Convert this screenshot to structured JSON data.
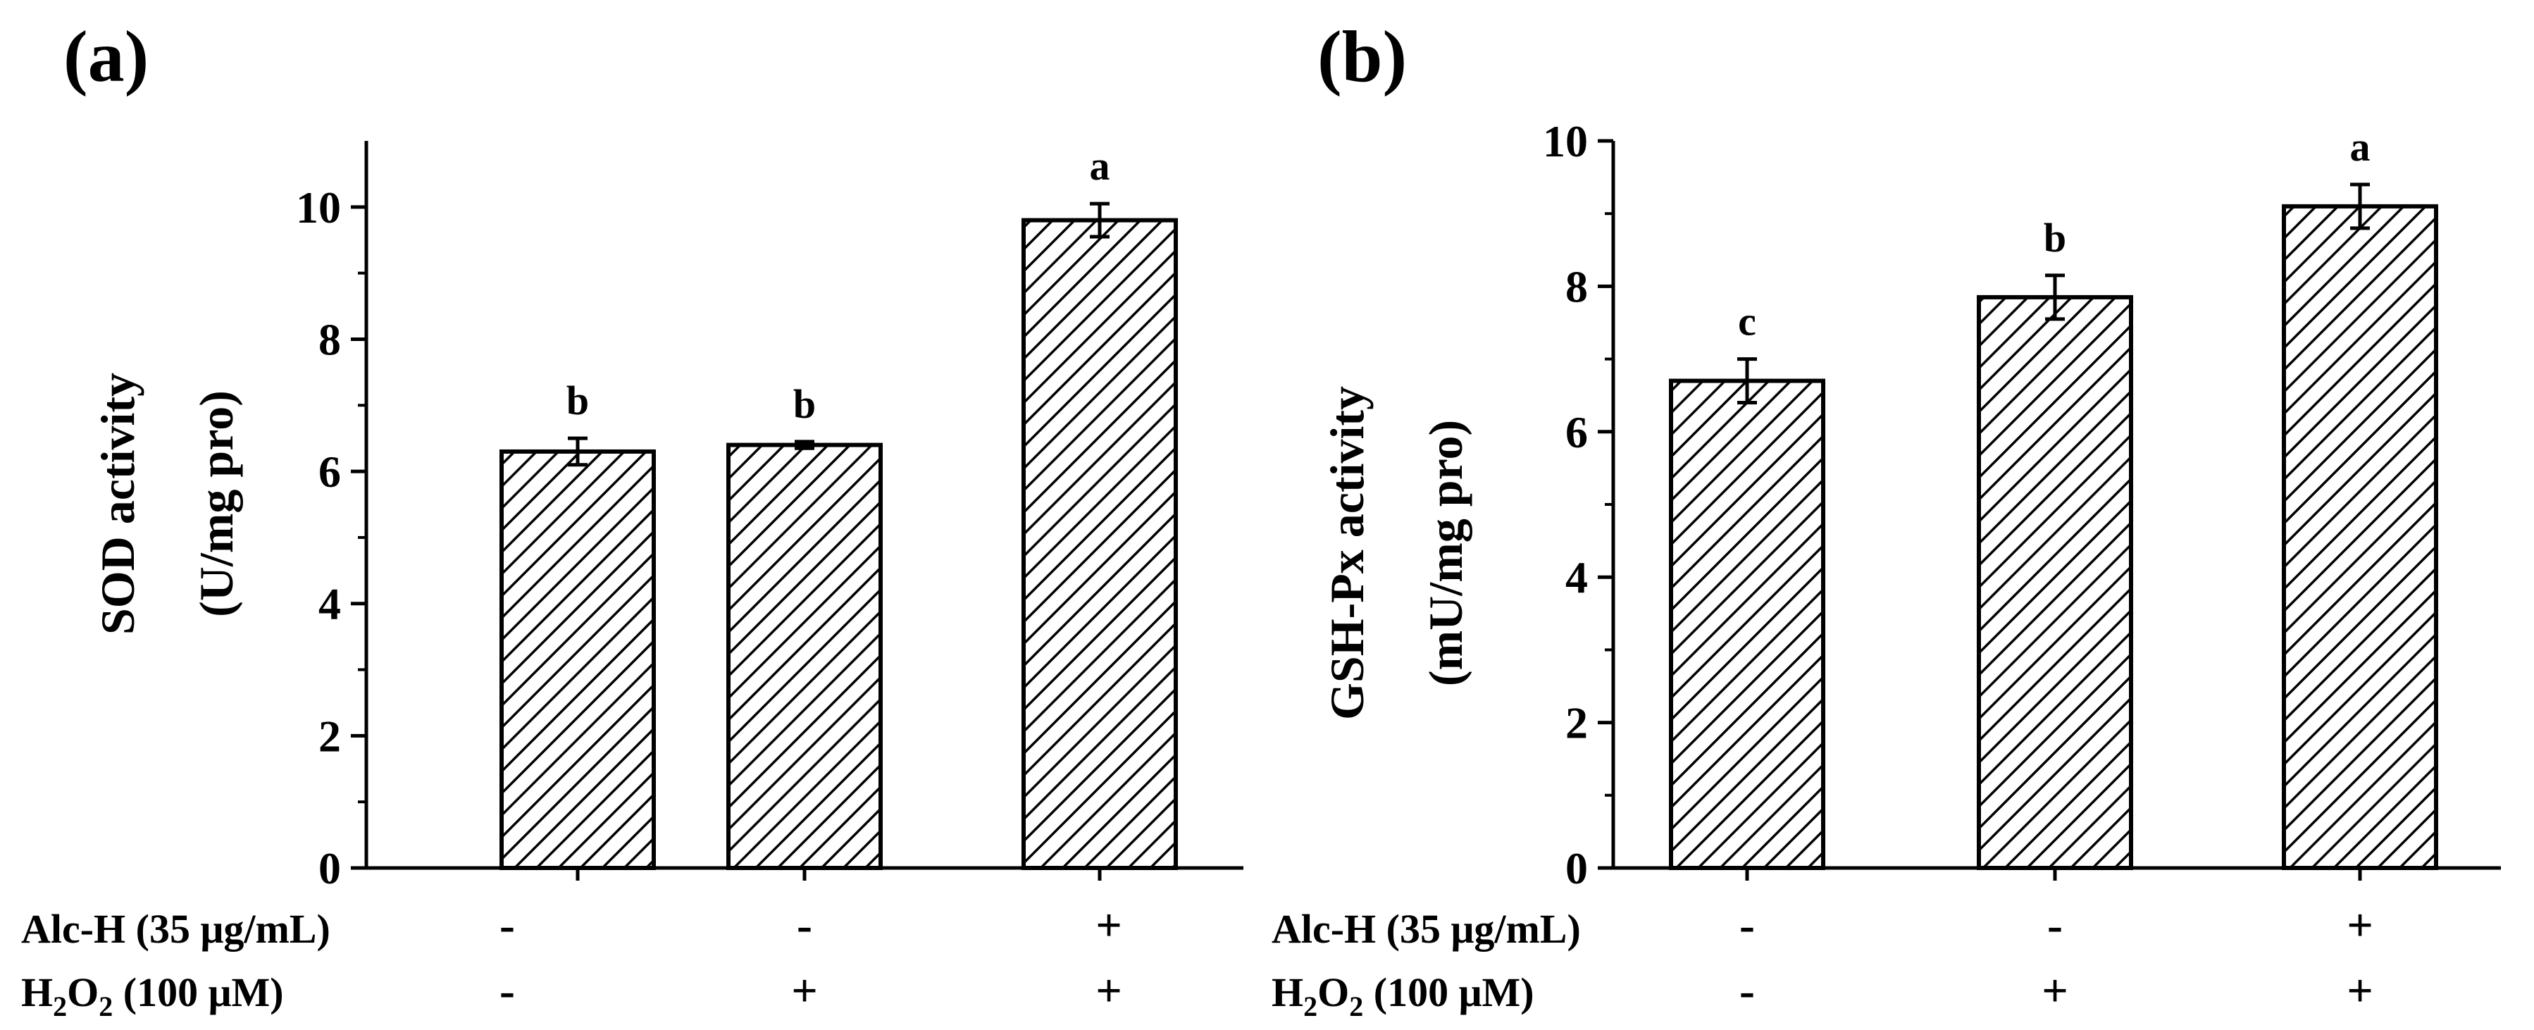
{
  "chart_data": [
    {
      "type": "bar",
      "panel_label": "(a)",
      "ylabel_line1": "SOD activity",
      "ylabel_line2": "(U/mg pro)",
      "ylim": [
        0,
        11
      ],
      "yticks": [
        0,
        2,
        4,
        6,
        8,
        10
      ],
      "categories": [
        "Alc-H -, H2O2 -",
        "Alc-H -, H2O2 +",
        "Alc-H +, H2O2 +"
      ],
      "values": [
        6.3,
        6.4,
        9.8
      ],
      "errors": [
        0.2,
        0.05,
        0.25
      ],
      "significance": [
        "b",
        "b",
        "a"
      ],
      "pattern": "diagonal-hatch"
    },
    {
      "type": "bar",
      "panel_label": "(b)",
      "ylabel_line1": "GSH-Px activity",
      "ylabel_line2": "(mU/mg pro)",
      "ylim": [
        0,
        10
      ],
      "yticks": [
        0,
        2,
        4,
        6,
        8,
        10
      ],
      "categories": [
        "Alc-H -, H2O2 -",
        "Alc-H -, H2O2 +",
        "Alc-H +, H2O2 +"
      ],
      "values": [
        6.7,
        7.85,
        9.1
      ],
      "errors": [
        0.3,
        0.3,
        0.3
      ],
      "significance": [
        "c",
        "b",
        "a"
      ],
      "pattern": "diagonal-hatch"
    }
  ],
  "treatment_rows": {
    "alc_label": "Alc-H (35 μg/mL)",
    "h2o2_prefix": "H",
    "h2o2_sub1": "2",
    "h2o2_mid": "O",
    "h2o2_sub2": "2",
    "h2o2_suffix": " (100 μM)",
    "alc_signs": [
      "-",
      "-",
      "+"
    ],
    "h2o2_signs": [
      "-",
      "+",
      "+"
    ]
  }
}
